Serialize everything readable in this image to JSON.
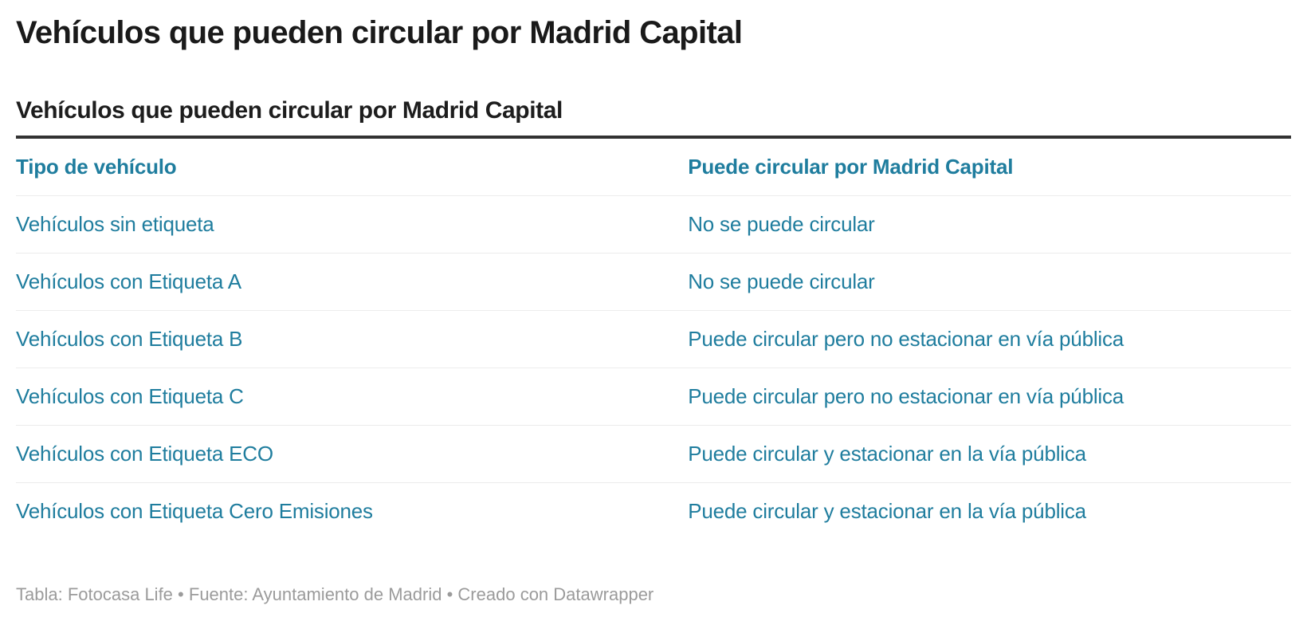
{
  "header": {
    "title": "Vehículos que pueden circular por Madrid Capital"
  },
  "table": {
    "caption": "Vehículos que pueden circular por Madrid Capital",
    "columns": [
      "Tipo de vehículo",
      "Puede circular por Madrid Capital"
    ],
    "rows": [
      {
        "tipo": "Vehículos sin etiqueta",
        "estado": "No se puede circular"
      },
      {
        "tipo": "Vehículos con Etiqueta A",
        "estado": "No se puede circular"
      },
      {
        "tipo": "Vehículos con Etiqueta B",
        "estado": "Puede circular pero no estacionar en vía pública"
      },
      {
        "tipo": "Vehículos con Etiqueta C",
        "estado": "Puede circular pero no estacionar en vía pública"
      },
      {
        "tipo": "Vehículos con Etiqueta ECO",
        "estado": "Puede circular y estacionar en la vía pública"
      },
      {
        "tipo": "Vehículos con Etiqueta Cero Emisiones",
        "estado": "Puede circular y estacionar en la vía pública"
      }
    ]
  },
  "footer": {
    "table_label": "Tabla:",
    "table_source": "Fotocasa Life",
    "bullet": "•",
    "source_label": "Fuente:",
    "source_name": "Ayuntamiento de Madrid",
    "created_with_label": "Creado con",
    "created_with_name": "Datawrapper"
  },
  "colors": {
    "accent_teal": "#1f7d9e",
    "title_black": "#1a1a1a",
    "caption_rule": "#333333",
    "row_divider": "#ececec",
    "footer_gray": "#9b9b9b",
    "background": "#ffffff"
  },
  "chart_data": {
    "type": "table",
    "title": "Vehículos que pueden circular por Madrid Capital",
    "columns": [
      "Tipo de vehículo",
      "Puede circular por Madrid Capital"
    ],
    "rows": [
      [
        "Vehículos sin etiqueta",
        "No se puede circular"
      ],
      [
        "Vehículos con Etiqueta A",
        "No se puede circular"
      ],
      [
        "Vehículos con Etiqueta B",
        "Puede circular pero no estacionar en vía pública"
      ],
      [
        "Vehículos con Etiqueta C",
        "Puede circular pero no estacionar en vía pública"
      ],
      [
        "Vehículos con Etiqueta ECO",
        "Puede circular y estacionar en la vía pública"
      ],
      [
        "Vehículos con Etiqueta Cero Emisiones",
        "Puede circular y estacionar en la vía pública"
      ]
    ],
    "legend_position": "none",
    "grid": "horizontal-row-dividers"
  }
}
